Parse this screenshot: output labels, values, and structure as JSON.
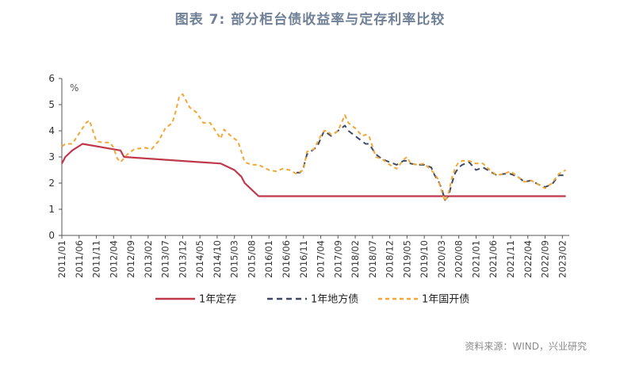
{
  "title": "图表 7:  部分柜台债收益率与定存利率比较",
  "source": "资料来源：WIND，兴业研究",
  "chart_data": {
    "type": "line",
    "title": "图表 7:  部分柜台债收益率与定存利率比较",
    "unit_label": "%",
    "ylim": [
      0,
      6
    ],
    "yticks": [
      0,
      1,
      2,
      3,
      4,
      5,
      6
    ],
    "xlim": [
      "2011-01",
      "2023-04"
    ],
    "xticks": [
      "2011/01",
      "2011/06",
      "2011/11",
      "2012/04",
      "2012/09",
      "2013/02",
      "2013/07",
      "2013/12",
      "2014/05",
      "2014/10",
      "2015/03",
      "2015/08",
      "2016/01",
      "2016/06",
      "2016/11",
      "2017/04",
      "2017/09",
      "2018/02",
      "2018/07",
      "2018/12",
      "2019/05",
      "2019/10",
      "2020/03",
      "2020/08",
      "2021/01",
      "2021/06",
      "2021/11",
      "2022/04",
      "2022/09",
      "2023/02"
    ],
    "legend_position": "bottom",
    "grid": false,
    "series": [
      {
        "name": "1年定存",
        "color": "#c0394b",
        "dash": "solid",
        "points": [
          [
            "2011-01",
            2.75
          ],
          [
            "2011-02",
            3.0
          ],
          [
            "2011-04",
            3.25
          ],
          [
            "2011-07",
            3.5
          ],
          [
            "2012-06",
            3.25
          ],
          [
            "2012-07",
            3.0
          ],
          [
            "2014-11",
            2.75
          ],
          [
            "2015-03",
            2.5
          ],
          [
            "2015-05",
            2.25
          ],
          [
            "2015-06",
            2.0
          ],
          [
            "2015-08",
            1.75
          ],
          [
            "2015-10",
            1.5
          ],
          [
            "2023-03",
            1.5
          ]
        ]
      },
      {
        "name": "1年地方债",
        "color": "#3c4a66",
        "dash": "7,5",
        "points": [
          [
            "2016-09",
            2.4
          ],
          [
            "2016-10",
            2.4
          ],
          [
            "2016-11",
            2.6
          ],
          [
            "2016-12",
            3.1
          ],
          [
            "2017-01",
            3.2
          ],
          [
            "2017-03",
            3.4
          ],
          [
            "2017-04",
            3.7
          ],
          [
            "2017-05",
            4.0
          ],
          [
            "2017-06",
            3.9
          ],
          [
            "2017-07",
            3.8
          ],
          [
            "2017-08",
            3.9
          ],
          [
            "2017-09",
            4.0
          ],
          [
            "2017-10",
            4.1
          ],
          [
            "2017-11",
            4.2
          ],
          [
            "2017-12",
            4.0
          ],
          [
            "2018-01",
            3.9
          ],
          [
            "2018-02",
            3.8
          ],
          [
            "2018-03",
            3.7
          ],
          [
            "2018-04",
            3.6
          ],
          [
            "2018-05",
            3.5
          ],
          [
            "2018-06",
            3.5
          ],
          [
            "2018-07",
            3.3
          ],
          [
            "2018-08",
            3.1
          ],
          [
            "2018-09",
            3.0
          ],
          [
            "2018-10",
            2.9
          ],
          [
            "2018-12",
            2.8
          ],
          [
            "2019-02",
            2.7
          ],
          [
            "2019-04",
            2.85
          ],
          [
            "2019-05",
            2.85
          ],
          [
            "2019-06",
            2.75
          ],
          [
            "2019-08",
            2.7
          ],
          [
            "2019-10",
            2.7
          ],
          [
            "2019-12",
            2.6
          ],
          [
            "2020-01",
            2.3
          ],
          [
            "2020-02",
            2.1
          ],
          [
            "2020-03",
            1.8
          ],
          [
            "2020-04",
            1.35
          ],
          [
            "2020-05",
            1.5
          ],
          [
            "2020-06",
            2.0
          ],
          [
            "2020-07",
            2.4
          ],
          [
            "2020-08",
            2.6
          ],
          [
            "2020-09",
            2.7
          ],
          [
            "2020-11",
            2.8
          ],
          [
            "2021-01",
            2.5
          ],
          [
            "2021-03",
            2.6
          ],
          [
            "2021-05",
            2.45
          ],
          [
            "2021-07",
            2.3
          ],
          [
            "2021-09",
            2.35
          ],
          [
            "2021-11",
            2.35
          ],
          [
            "2022-01",
            2.25
          ],
          [
            "2022-03",
            2.05
          ],
          [
            "2022-05",
            2.1
          ],
          [
            "2022-07",
            1.95
          ],
          [
            "2022-09",
            1.85
          ],
          [
            "2022-11",
            1.95
          ],
          [
            "2023-01",
            2.3
          ],
          [
            "2023-03",
            2.3
          ]
        ]
      },
      {
        "name": "1年国开债",
        "color": "#f2a736",
        "dash": "5,4",
        "points": [
          [
            "2011-01",
            3.4
          ],
          [
            "2011-02",
            3.5
          ],
          [
            "2011-04",
            3.5
          ],
          [
            "2011-06",
            3.9
          ],
          [
            "2011-08",
            4.3
          ],
          [
            "2011-09",
            4.4
          ],
          [
            "2011-11",
            3.6
          ],
          [
            "2012-01",
            3.55
          ],
          [
            "2012-03",
            3.55
          ],
          [
            "2012-04",
            3.35
          ],
          [
            "2012-05",
            2.95
          ],
          [
            "2012-06",
            2.8
          ],
          [
            "2012-08",
            3.1
          ],
          [
            "2012-10",
            3.3
          ],
          [
            "2013-01",
            3.35
          ],
          [
            "2013-03",
            3.3
          ],
          [
            "2013-05",
            3.6
          ],
          [
            "2013-07",
            4.1
          ],
          [
            "2013-09",
            4.3
          ],
          [
            "2013-10",
            4.75
          ],
          [
            "2013-11",
            5.3
          ],
          [
            "2013-12",
            5.4
          ],
          [
            "2014-02",
            4.9
          ],
          [
            "2014-04",
            4.7
          ],
          [
            "2014-06",
            4.3
          ],
          [
            "2014-08",
            4.3
          ],
          [
            "2014-10",
            3.9
          ],
          [
            "2014-11",
            3.7
          ],
          [
            "2014-12",
            4.05
          ],
          [
            "2015-02",
            3.8
          ],
          [
            "2015-04",
            3.6
          ],
          [
            "2015-05",
            3.2
          ],
          [
            "2015-06",
            2.8
          ],
          [
            "2015-08",
            2.7
          ],
          [
            "2015-10",
            2.7
          ],
          [
            "2016-01",
            2.5
          ],
          [
            "2016-03",
            2.45
          ],
          [
            "2016-05",
            2.55
          ],
          [
            "2016-07",
            2.5
          ],
          [
            "2016-09",
            2.35
          ],
          [
            "2016-11",
            2.5
          ],
          [
            "2016-12",
            3.2
          ],
          [
            "2017-02",
            3.3
          ],
          [
            "2017-04",
            3.8
          ],
          [
            "2017-05",
            4.0
          ],
          [
            "2017-06",
            4.0
          ],
          [
            "2017-07",
            3.85
          ],
          [
            "2017-08",
            3.9
          ],
          [
            "2017-09",
            4.0
          ],
          [
            "2017-10",
            4.3
          ],
          [
            "2017-11",
            4.6
          ],
          [
            "2017-12",
            4.3
          ],
          [
            "2018-01",
            4.2
          ],
          [
            "2018-02",
            4.1
          ],
          [
            "2018-04",
            3.8
          ],
          [
            "2018-05",
            3.85
          ],
          [
            "2018-06",
            3.8
          ],
          [
            "2018-08",
            3.0
          ],
          [
            "2018-10",
            2.9
          ],
          [
            "2018-12",
            2.7
          ],
          [
            "2019-02",
            2.55
          ],
          [
            "2019-04",
            2.9
          ],
          [
            "2019-05",
            3.0
          ],
          [
            "2019-06",
            2.75
          ],
          [
            "2019-08",
            2.7
          ],
          [
            "2019-10",
            2.75
          ],
          [
            "2019-12",
            2.5
          ],
          [
            "2020-01",
            2.35
          ],
          [
            "2020-02",
            2.15
          ],
          [
            "2020-03",
            1.7
          ],
          [
            "2020-04",
            1.3
          ],
          [
            "2020-05",
            1.6
          ],
          [
            "2020-06",
            2.2
          ],
          [
            "2020-07",
            2.6
          ],
          [
            "2020-08",
            2.8
          ],
          [
            "2020-09",
            2.85
          ],
          [
            "2020-11",
            2.85
          ],
          [
            "2021-01",
            2.75
          ],
          [
            "2021-03",
            2.75
          ],
          [
            "2021-05",
            2.5
          ],
          [
            "2021-07",
            2.3
          ],
          [
            "2021-09",
            2.35
          ],
          [
            "2021-11",
            2.45
          ],
          [
            "2022-01",
            2.25
          ],
          [
            "2022-03",
            2.05
          ],
          [
            "2022-05",
            2.1
          ],
          [
            "2022-07",
            1.95
          ],
          [
            "2022-09",
            1.8
          ],
          [
            "2022-11",
            2.0
          ],
          [
            "2023-01",
            2.35
          ],
          [
            "2023-03",
            2.5
          ]
        ]
      }
    ]
  }
}
